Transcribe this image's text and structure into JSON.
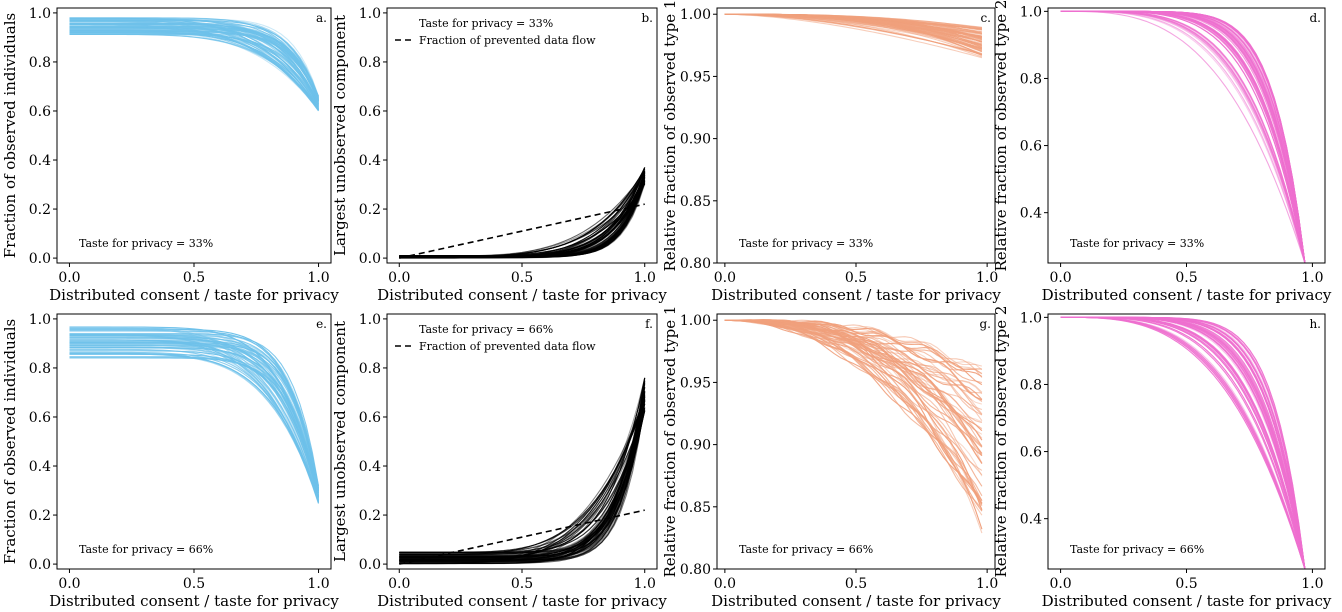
{
  "chart_data": [
    {
      "panel": "a.",
      "type": "line",
      "xlabel": "Distributed consent / taste for privacy",
      "ylabel": "Fraction of observed individuals",
      "xlim": [
        -0.05,
        1.05
      ],
      "ylim": [
        -0.02,
        1.02
      ],
      "xticks": [
        "0.0",
        "0.5",
        "1.0"
      ],
      "yticks": [
        "0.0",
        "0.2",
        "0.4",
        "0.6",
        "0.8",
        "1.0"
      ],
      "annotation": "Taste for privacy = 33%",
      "color": "#6ec1ea",
      "curve_family": {
        "n_curves": 60,
        "y_start_range": [
          0.91,
          0.98
        ],
        "y_end_range": [
          0.6,
          0.66
        ],
        "x_end": 1.0
      },
      "series": []
    },
    {
      "panel": "b.",
      "type": "line",
      "xlabel": "Distributed consent / taste for privacy",
      "ylabel": "Largest unobserved component",
      "xlim": [
        -0.05,
        1.05
      ],
      "ylim": [
        -0.02,
        1.02
      ],
      "xticks": [
        "0.0",
        "0.5",
        "1.0"
      ],
      "yticks": [
        "0.0",
        "0.2",
        "0.4",
        "0.6",
        "0.8",
        "1.0"
      ],
      "annotation": "",
      "legend": {
        "title": "Taste for privacy = 33%",
        "location": "top-left",
        "entries": [
          "Fraction of prevented data flow"
        ]
      },
      "color": "#000000",
      "curve_family": {
        "n_curves": 60,
        "y_start_range": [
          0.0,
          0.01
        ],
        "y_end_range": [
          0.3,
          0.37
        ],
        "x_end": 1.0
      },
      "series": [
        {
          "name": "Fraction of prevented data flow",
          "style": "dashed",
          "x": [
            0.0,
            1.0
          ],
          "y": [
            0.0,
            0.22
          ]
        }
      ]
    },
    {
      "panel": "c.",
      "type": "line",
      "xlabel": "Distributed consent / taste for privacy",
      "ylabel": "Relative fraction of observed type 1",
      "xlim": [
        -0.03,
        1.03
      ],
      "ylim": [
        0.8,
        1.005
      ],
      "xticks": [
        "0.0",
        "0.5",
        "1.0"
      ],
      "yticks": [
        "0.80",
        "0.85",
        "0.90",
        "0.95",
        "1.00"
      ],
      "annotation": "Taste for privacy = 33%",
      "color": "#f0a07c",
      "curve_family": {
        "n_curves": 60,
        "y_start_range": [
          1.0,
          1.0
        ],
        "y_end_range": [
          0.965,
          0.99
        ],
        "x_end": 0.98
      },
      "series": []
    },
    {
      "panel": "d.",
      "type": "line",
      "xlabel": "Distributed consent / taste for privacy",
      "ylabel": "Relative fraction of observed type 2",
      "xlim": [
        -0.05,
        1.05
      ],
      "ylim": [
        0.25,
        1.01
      ],
      "xticks": [
        "0.0",
        "0.5",
        "1.0"
      ],
      "yticks": [
        "0.4",
        "0.6",
        "0.8",
        "1.0"
      ],
      "annotation": "Taste for privacy = 33%",
      "color": "#ee6fcf",
      "curve_family": {
        "n_curves": 60,
        "y_start_range": [
          1.0,
          1.0
        ],
        "y_end_range": [
          0.25,
          0.25
        ],
        "x_end": 0.97
      },
      "series": []
    },
    {
      "panel": "e.",
      "type": "line",
      "xlabel": "Distributed consent / taste for privacy",
      "ylabel": "Fraction of observed individuals",
      "xlim": [
        -0.05,
        1.05
      ],
      "ylim": [
        -0.02,
        1.02
      ],
      "xticks": [
        "0.0",
        "0.5",
        "1.0"
      ],
      "yticks": [
        "0.0",
        "0.2",
        "0.4",
        "0.6",
        "0.8",
        "1.0"
      ],
      "annotation": "Taste for privacy = 66%",
      "color": "#6ec1ea",
      "curve_family": {
        "n_curves": 60,
        "y_start_range": [
          0.84,
          0.97
        ],
        "y_end_range": [
          0.24,
          0.32
        ],
        "x_end": 1.0
      },
      "series": []
    },
    {
      "panel": "f.",
      "type": "line",
      "xlabel": "Distributed consent / taste for privacy",
      "ylabel": "Largest unobserved component",
      "xlim": [
        -0.05,
        1.05
      ],
      "ylim": [
        -0.02,
        1.02
      ],
      "xticks": [
        "0.0",
        "0.5",
        "1.0"
      ],
      "yticks": [
        "0.0",
        "0.2",
        "0.4",
        "0.6",
        "0.8",
        "1.0"
      ],
      "annotation": "",
      "legend": {
        "title": "Taste for privacy = 66%",
        "location": "top-left",
        "entries": [
          "Fraction of prevented data flow"
        ]
      },
      "color": "#000000",
      "curve_family": {
        "n_curves": 60,
        "y_start_range": [
          0.0,
          0.05
        ],
        "y_end_range": [
          0.62,
          0.76
        ],
        "x_end": 1.0
      },
      "series": [
        {
          "name": "Fraction of prevented data flow",
          "style": "dashed",
          "x": [
            0.0,
            1.0
          ],
          "y": [
            0.0,
            0.22
          ]
        }
      ]
    },
    {
      "panel": "g.",
      "type": "line",
      "xlabel": "Distributed consent / taste for privacy",
      "ylabel": "Relative fraction of observed type 1",
      "xlim": [
        -0.03,
        1.03
      ],
      "ylim": [
        0.8,
        1.005
      ],
      "xticks": [
        "0.0",
        "0.5",
        "1.0"
      ],
      "yticks": [
        "0.80",
        "0.85",
        "0.90",
        "0.95",
        "1.00"
      ],
      "annotation": "Taste for privacy = 66%",
      "color": "#f0a07c",
      "curve_family": {
        "n_curves": 60,
        "y_start_range": [
          1.0,
          1.0
        ],
        "y_end_range": [
          0.83,
          0.96
        ],
        "x_end": 0.98
      },
      "series": []
    },
    {
      "panel": "h.",
      "type": "line",
      "xlabel": "Distributed consent / taste for privacy",
      "ylabel": "Relative fraction of observed type 2",
      "xlim": [
        -0.05,
        1.05
      ],
      "ylim": [
        0.25,
        1.01
      ],
      "xticks": [
        "0.0",
        "0.5",
        "1.0"
      ],
      "yticks": [
        "0.4",
        "0.6",
        "0.8",
        "1.0"
      ],
      "annotation": "Taste for privacy = 66%",
      "color": "#ee6fcf",
      "curve_family": {
        "n_curves": 60,
        "y_start_range": [
          1.0,
          1.0
        ],
        "y_end_range": [
          0.25,
          0.25
        ],
        "x_end": 0.97
      },
      "series": []
    }
  ]
}
